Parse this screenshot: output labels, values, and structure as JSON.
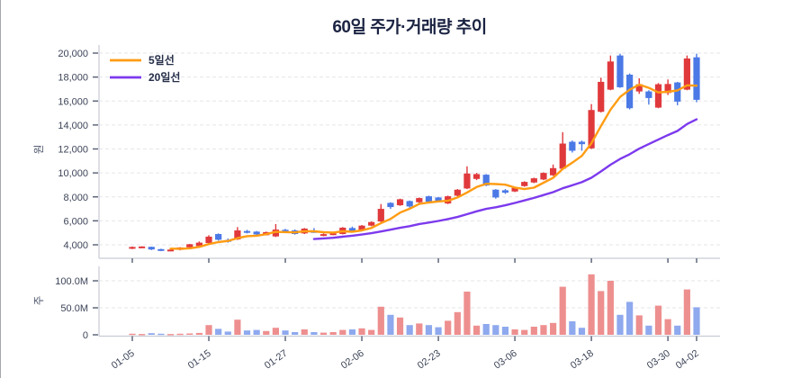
{
  "chart_data": {
    "type": "candlestick",
    "title": "60일 주가·거래량 추이",
    "y_axis_price": {
      "label": "원",
      "ticks": [
        4000,
        6000,
        8000,
        10000,
        12000,
        14000,
        16000,
        18000,
        20000
      ],
      "range": [
        3200,
        20800
      ]
    },
    "y_axis_volume": {
      "label": "주",
      "ticks": [
        {
          "millions": 0,
          "label": "0"
        },
        {
          "millions": 50,
          "label": "50.0M"
        },
        {
          "millions": 100,
          "label": "100.0M"
        }
      ]
    },
    "x_axis": {
      "tick_indices": [
        0,
        8,
        16,
        24,
        32,
        40,
        48,
        56,
        59
      ],
      "tick_labels": [
        "01-05",
        "01-15",
        "01-27",
        "02-06",
        "02-23",
        "03-06",
        "03-18",
        "03-30",
        "04-02"
      ]
    },
    "legend": [
      {
        "label": "5일선",
        "window": 5,
        "color": "#ff9c12"
      },
      {
        "label": "20일선",
        "window": 20,
        "color": "#7c3aed"
      }
    ],
    "colors": {
      "up": "#e0393c",
      "down": "#4b79e6",
      "volume_up": "#ee8f8f",
      "volume_down": "#8fa9ee"
    },
    "columns": [
      "open",
      "high",
      "low",
      "close",
      "volume_millions"
    ],
    "candles": [
      [
        3700,
        3860,
        3640,
        3820,
        2.0
      ],
      [
        3810,
        3880,
        3730,
        3860,
        1.5
      ],
      [
        3830,
        3850,
        3560,
        3610,
        3.0
      ],
      [
        3640,
        3670,
        3470,
        3510,
        2.0
      ],
      [
        3500,
        3620,
        3460,
        3600,
        1.5
      ],
      [
        3580,
        3800,
        3540,
        3780,
        2.0
      ],
      [
        3790,
        4070,
        3760,
        4050,
        2.5
      ],
      [
        3900,
        4280,
        3850,
        4180,
        3.5
      ],
      [
        4150,
        4800,
        4100,
        4680,
        18
      ],
      [
        4900,
        4950,
        4350,
        4420,
        11
      ],
      [
        4400,
        4520,
        4180,
        4300,
        6
      ],
      [
        4450,
        5480,
        4400,
        5200,
        28
      ],
      [
        5150,
        5250,
        4950,
        5000,
        8
      ],
      [
        5100,
        5150,
        4820,
        4870,
        9
      ],
      [
        4800,
        5100,
        4780,
        5060,
        7
      ],
      [
        4700,
        5730,
        4650,
        5270,
        13
      ],
      [
        5250,
        5330,
        5050,
        5100,
        8
      ],
      [
        5200,
        5280,
        4850,
        4900,
        5
      ],
      [
        4950,
        5400,
        4900,
        5350,
        10
      ],
      [
        5150,
        5400,
        5000,
        5020,
        5
      ],
      [
        4760,
        4950,
        4720,
        4890,
        4
      ],
      [
        4850,
        5000,
        4800,
        4960,
        5
      ],
      [
        4900,
        5480,
        4870,
        5430,
        9
      ],
      [
        5400,
        5520,
        5080,
        5130,
        10
      ],
      [
        5200,
        5650,
        5150,
        5600,
        12
      ],
      [
        5600,
        5950,
        5550,
        5900,
        9
      ],
      [
        5950,
        7400,
        5900,
        7000,
        52
      ],
      [
        7500,
        7550,
        7000,
        7150,
        37
      ],
      [
        7300,
        7850,
        7250,
        7800,
        32
      ],
      [
        7650,
        7700,
        7100,
        7200,
        18
      ],
      [
        7550,
        7950,
        7500,
        7900,
        21
      ],
      [
        8050,
        8100,
        7500,
        7600,
        18
      ],
      [
        7950,
        8000,
        7550,
        7620,
        14
      ],
      [
        7450,
        8100,
        7400,
        8050,
        26
      ],
      [
        8100,
        8650,
        8050,
        8600,
        42
      ],
      [
        8700,
        10550,
        8650,
        9950,
        80
      ],
      [
        9500,
        10000,
        9400,
        9900,
        17
      ],
      [
        9850,
        9900,
        8900,
        8950,
        20
      ],
      [
        8600,
        8650,
        7850,
        7950,
        18
      ],
      [
        8550,
        8650,
        8250,
        8350,
        15
      ],
      [
        8450,
        8800,
        8400,
        8750,
        10
      ],
      [
        8900,
        9300,
        8850,
        9250,
        9
      ],
      [
        9200,
        9600,
        9150,
        9550,
        15
      ],
      [
        9450,
        10050,
        9400,
        10000,
        18
      ],
      [
        9800,
        10700,
        9750,
        10400,
        22
      ],
      [
        10350,
        13400,
        10300,
        12450,
        89
      ],
      [
        12600,
        12700,
        11700,
        11850,
        25
      ],
      [
        12600,
        12700,
        11850,
        12400,
        13
      ],
      [
        12050,
        15750,
        12000,
        15250,
        112
      ],
      [
        15100,
        17950,
        15050,
        17600,
        81
      ],
      [
        16950,
        19800,
        16900,
        19300,
        100
      ],
      [
        19800,
        19950,
        17100,
        17150,
        37
      ],
      [
        18200,
        18300,
        15300,
        15400,
        61
      ],
      [
        16800,
        17900,
        16600,
        17400,
        36
      ],
      [
        16800,
        16900,
        15700,
        16250,
        17
      ],
      [
        15450,
        17500,
        15400,
        17400,
        54
      ],
      [
        16670,
        17800,
        16500,
        17420,
        29
      ],
      [
        17550,
        17600,
        15650,
        15950,
        17
      ],
      [
        16950,
        19800,
        16900,
        19550,
        84
      ],
      [
        19650,
        19950,
        15900,
        16100,
        51
      ]
    ]
  }
}
